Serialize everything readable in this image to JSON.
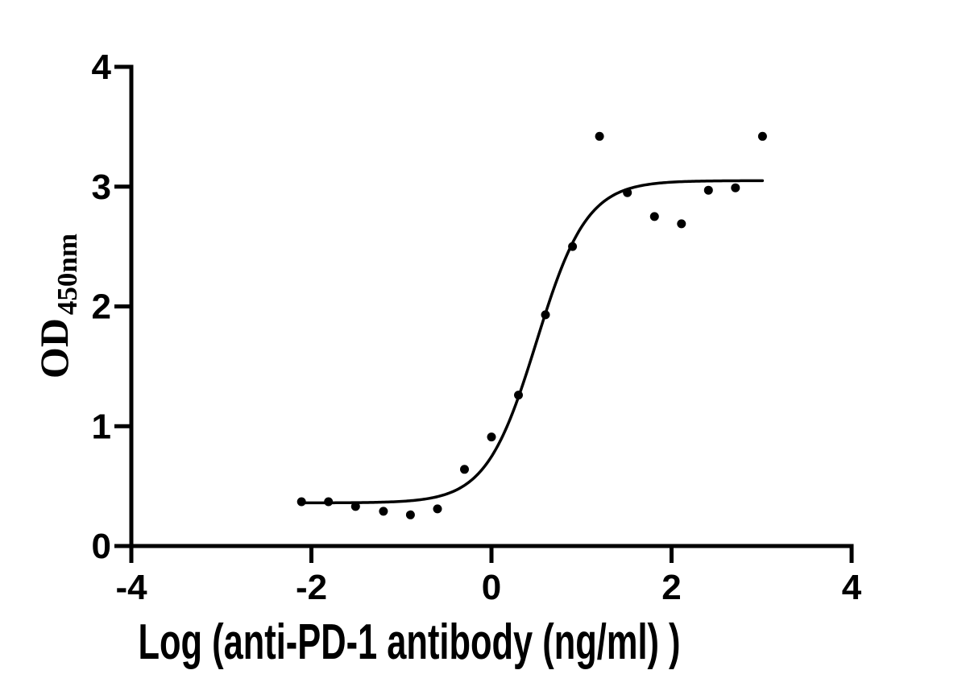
{
  "figure": {
    "background": "#ffffff"
  },
  "chart_data": {
    "type": "scatter",
    "title": "",
    "xlabel": "Log (anti-PD-1 antibody (ng/ml) )",
    "ylabel_main": "OD",
    "ylabel_sub": "450nm",
    "xlim": [
      -4,
      4
    ],
    "ylim": [
      0,
      4
    ],
    "x_ticks": [
      -4,
      -2,
      0,
      2,
      4
    ],
    "y_ticks": [
      0,
      1,
      2,
      3,
      4
    ],
    "grid": false,
    "legend": "none",
    "points": [
      {
        "x": -2.11,
        "y": 0.37
      },
      {
        "x": -1.81,
        "y": 0.37
      },
      {
        "x": -1.51,
        "y": 0.33
      },
      {
        "x": -1.2,
        "y": 0.29
      },
      {
        "x": -0.9,
        "y": 0.26
      },
      {
        "x": -0.6,
        "y": 0.31
      },
      {
        "x": -0.3,
        "y": 0.64
      },
      {
        "x": 0.0,
        "y": 0.91
      },
      {
        "x": 0.3,
        "y": 1.26
      },
      {
        "x": 0.6,
        "y": 1.93
      },
      {
        "x": 0.9,
        "y": 2.5
      },
      {
        "x": 1.2,
        "y": 3.42
      },
      {
        "x": 1.51,
        "y": 2.95
      },
      {
        "x": 1.81,
        "y": 2.75
      },
      {
        "x": 2.11,
        "y": 2.69
      },
      {
        "x": 2.41,
        "y": 2.97
      },
      {
        "x": 2.71,
        "y": 2.99
      },
      {
        "x": 3.01,
        "y": 3.42
      }
    ],
    "fit_curve": {
      "model": "4PL-sigmoid",
      "bottom": 0.36,
      "top": 3.05,
      "log_ec50": 0.5,
      "hill": 1.55,
      "x_start": -2.11,
      "x_end": 3.01
    },
    "colors": {
      "points": "#000000",
      "curve": "#000000",
      "axis": "#000000",
      "text": "#000000"
    }
  }
}
